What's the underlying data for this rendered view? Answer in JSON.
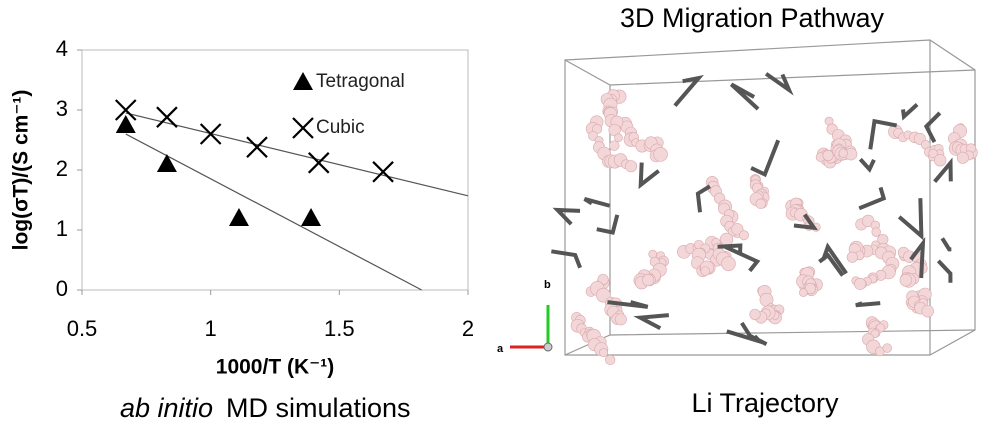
{
  "chart_data": {
    "type": "scatter",
    "xlabel": "1000/T (K⁻¹)",
    "ylabel": "log(σT)/(S cm⁻¹)",
    "xlim": [
      0.5,
      2
    ],
    "ylim": [
      0,
      4
    ],
    "xticks": [
      0.5,
      1,
      1.5,
      2
    ],
    "yticks": [
      0,
      1,
      2,
      3,
      4
    ],
    "series": [
      {
        "name": "Tetragonal",
        "marker": "triangle",
        "color": "#000000",
        "x": [
          0.67,
          0.83,
          1.11,
          1.39
        ],
        "values": [
          2.75,
          2.1,
          1.2,
          1.2
        ],
        "fit": {
          "x": [
            0.67,
            1.82
          ],
          "values": [
            2.6,
            0
          ]
        }
      },
      {
        "name": "Cubic",
        "marker": "cross",
        "color": "#000000",
        "x": [
          0.67,
          0.83,
          1.0,
          1.18,
          1.42,
          1.67
        ],
        "values": [
          3.0,
          2.88,
          2.6,
          2.38,
          2.12,
          1.97
        ],
        "fit": {
          "x": [
            0.67,
            2.0
          ],
          "values": [
            2.95,
            1.57
          ]
        }
      }
    ]
  },
  "caption": {
    "italic": "ab initio",
    "text": "MD simulations"
  },
  "image": {
    "title": "3D Migration Pathway",
    "label": "Li Trajectory",
    "axes": [
      "a",
      "b"
    ]
  }
}
